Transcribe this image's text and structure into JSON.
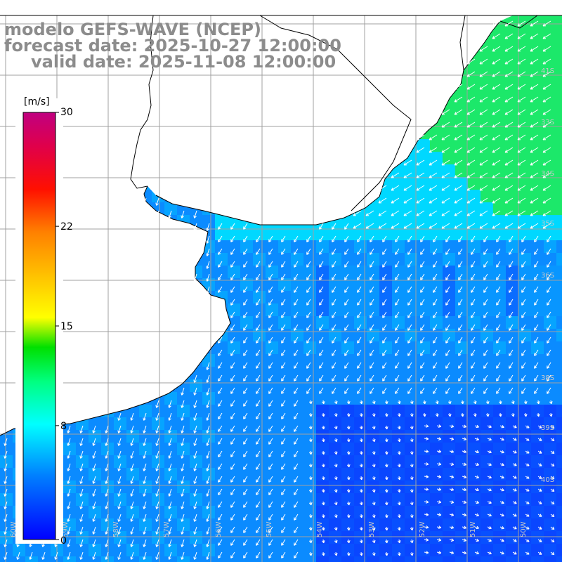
{
  "title": {
    "line1": "modelo GEFS-WAVE (NCEP)",
    "line2": "forecast date: 2025-10-27 12:00:00",
    "line3": "valid date: 2025-11-08 12:00:00"
  },
  "colorbar": {
    "unit": "[m/s]",
    "min": 0,
    "max": 30,
    "ticks": [
      "30",
      "22",
      "15",
      "8",
      "0"
    ],
    "tick_values": [
      30,
      22,
      15,
      8,
      0
    ],
    "colors": [
      "#0000ff",
      "#0080ff",
      "#00c8ff",
      "#00ffff",
      "#00ff80",
      "#00e000",
      "#80ff00",
      "#ffff00",
      "#ffc000",
      "#ff8000",
      "#ff2000",
      "#ff0000",
      "#e0004a",
      "#c00080"
    ]
  },
  "lat_labels": [
    "41S",
    "33S",
    "34S",
    "35S",
    "36S",
    "38S",
    "39S",
    "40S"
  ],
  "lon_labels": [
    "60W",
    "59W",
    "58W",
    "57W",
    "56W",
    "55W",
    "54W",
    "53W",
    "52W",
    "51W",
    "50W"
  ],
  "colors": {
    "land": "#ffffff",
    "coast": "#000000",
    "grid": "#a0a0a0",
    "arrow": "#ffffff",
    "sea_dark": "#0a46ff",
    "sea_mid": "#0b8bff",
    "sea_light": "#00d8ff",
    "sea_green": "#1ce86a"
  }
}
